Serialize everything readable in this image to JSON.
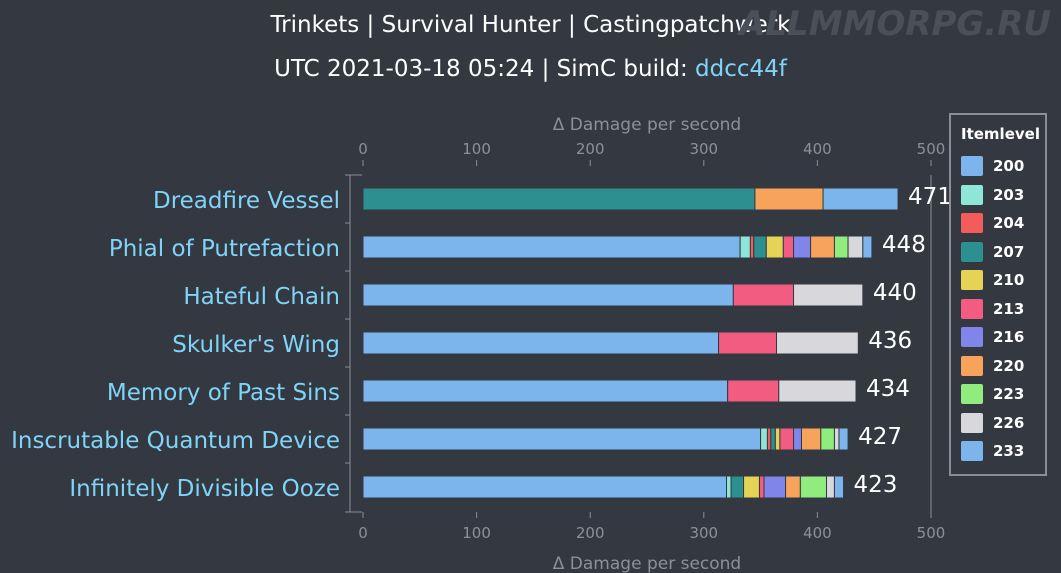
{
  "header": {
    "title_line1": "Trinkets | Survival Hunter | Castingpatchwerk",
    "title_line2_prefix": "UTC 2021-03-18 05:24 | SimC build: ",
    "title_line2_link": "ddcc44f"
  },
  "watermark": "ALLMMORPG.RU",
  "legend": {
    "title": "Itemlevel",
    "items": [
      {
        "label": "200",
        "color": "#7cb5ec"
      },
      {
        "label": "203",
        "color": "#8ee6d8"
      },
      {
        "label": "204",
        "color": "#f45b5b"
      },
      {
        "label": "207",
        "color": "#2b908f"
      },
      {
        "label": "210",
        "color": "#e4d354"
      },
      {
        "label": "213",
        "color": "#f15c80"
      },
      {
        "label": "216",
        "color": "#8085e9"
      },
      {
        "label": "220",
        "color": "#f7a35c"
      },
      {
        "label": "223",
        "color": "#90ed7d"
      },
      {
        "label": "226",
        "color": "#d8d8dc"
      },
      {
        "label": "233",
        "color": "#7cb5ec"
      }
    ]
  },
  "chart_data": {
    "type": "bar",
    "orientation": "horizontal",
    "stacked": true,
    "axis_title": "Δ Damage per second",
    "xlim": [
      0,
      500
    ],
    "ticks": [
      0,
      100,
      200,
      300,
      400,
      500
    ],
    "legend_position": "right",
    "categories": [
      "Dreadfire Vessel",
      "Phial of Putrefaction",
      "Hateful Chain",
      "Skulker's Wing",
      "Memory of Past Sins",
      "Inscrutable Quantum Device",
      "Infinitely Divisible Ooze"
    ],
    "totals": [
      471,
      448,
      440,
      436,
      434,
      427,
      423
    ],
    "segments": [
      [
        {
          "ilvl": "207",
          "value": 345
        },
        {
          "ilvl": "220",
          "value": 60
        },
        {
          "ilvl": "233",
          "value": 66
        }
      ],
      [
        {
          "ilvl": "200",
          "value": 332
        },
        {
          "ilvl": "203",
          "value": 9
        },
        {
          "ilvl": "204",
          "value": 3
        },
        {
          "ilvl": "207",
          "value": 11
        },
        {
          "ilvl": "210",
          "value": 15
        },
        {
          "ilvl": "213",
          "value": 9
        },
        {
          "ilvl": "216",
          "value": 15
        },
        {
          "ilvl": "220",
          "value": 21
        },
        {
          "ilvl": "223",
          "value": 12
        },
        {
          "ilvl": "226",
          "value": 13
        },
        {
          "ilvl": "233",
          "value": 8
        }
      ],
      [
        {
          "ilvl": "200",
          "value": 326
        },
        {
          "ilvl": "213",
          "value": 53
        },
        {
          "ilvl": "226",
          "value": 61
        }
      ],
      [
        {
          "ilvl": "200",
          "value": 313
        },
        {
          "ilvl": "213",
          "value": 51
        },
        {
          "ilvl": "226",
          "value": 72
        }
      ],
      [
        {
          "ilvl": "200",
          "value": 321
        },
        {
          "ilvl": "213",
          "value": 45
        },
        {
          "ilvl": "226",
          "value": 68
        }
      ],
      [
        {
          "ilvl": "200",
          "value": 350
        },
        {
          "ilvl": "203",
          "value": 6
        },
        {
          "ilvl": "204",
          "value": 3
        },
        {
          "ilvl": "207",
          "value": 4
        },
        {
          "ilvl": "210",
          "value": 4
        },
        {
          "ilvl": "213",
          "value": 12
        },
        {
          "ilvl": "216",
          "value": 7
        },
        {
          "ilvl": "220",
          "value": 17
        },
        {
          "ilvl": "223",
          "value": 12
        },
        {
          "ilvl": "226",
          "value": 4
        },
        {
          "ilvl": "233",
          "value": 8
        }
      ],
      [
        {
          "ilvl": "200",
          "value": 320
        },
        {
          "ilvl": "203",
          "value": 4
        },
        {
          "ilvl": "207",
          "value": 11
        },
        {
          "ilvl": "210",
          "value": 14
        },
        {
          "ilvl": "213",
          "value": 4
        },
        {
          "ilvl": "216",
          "value": 19
        },
        {
          "ilvl": "220",
          "value": 13
        },
        {
          "ilvl": "223",
          "value": 23
        },
        {
          "ilvl": "226",
          "value": 7
        },
        {
          "ilvl": "233",
          "value": 8
        }
      ]
    ]
  }
}
